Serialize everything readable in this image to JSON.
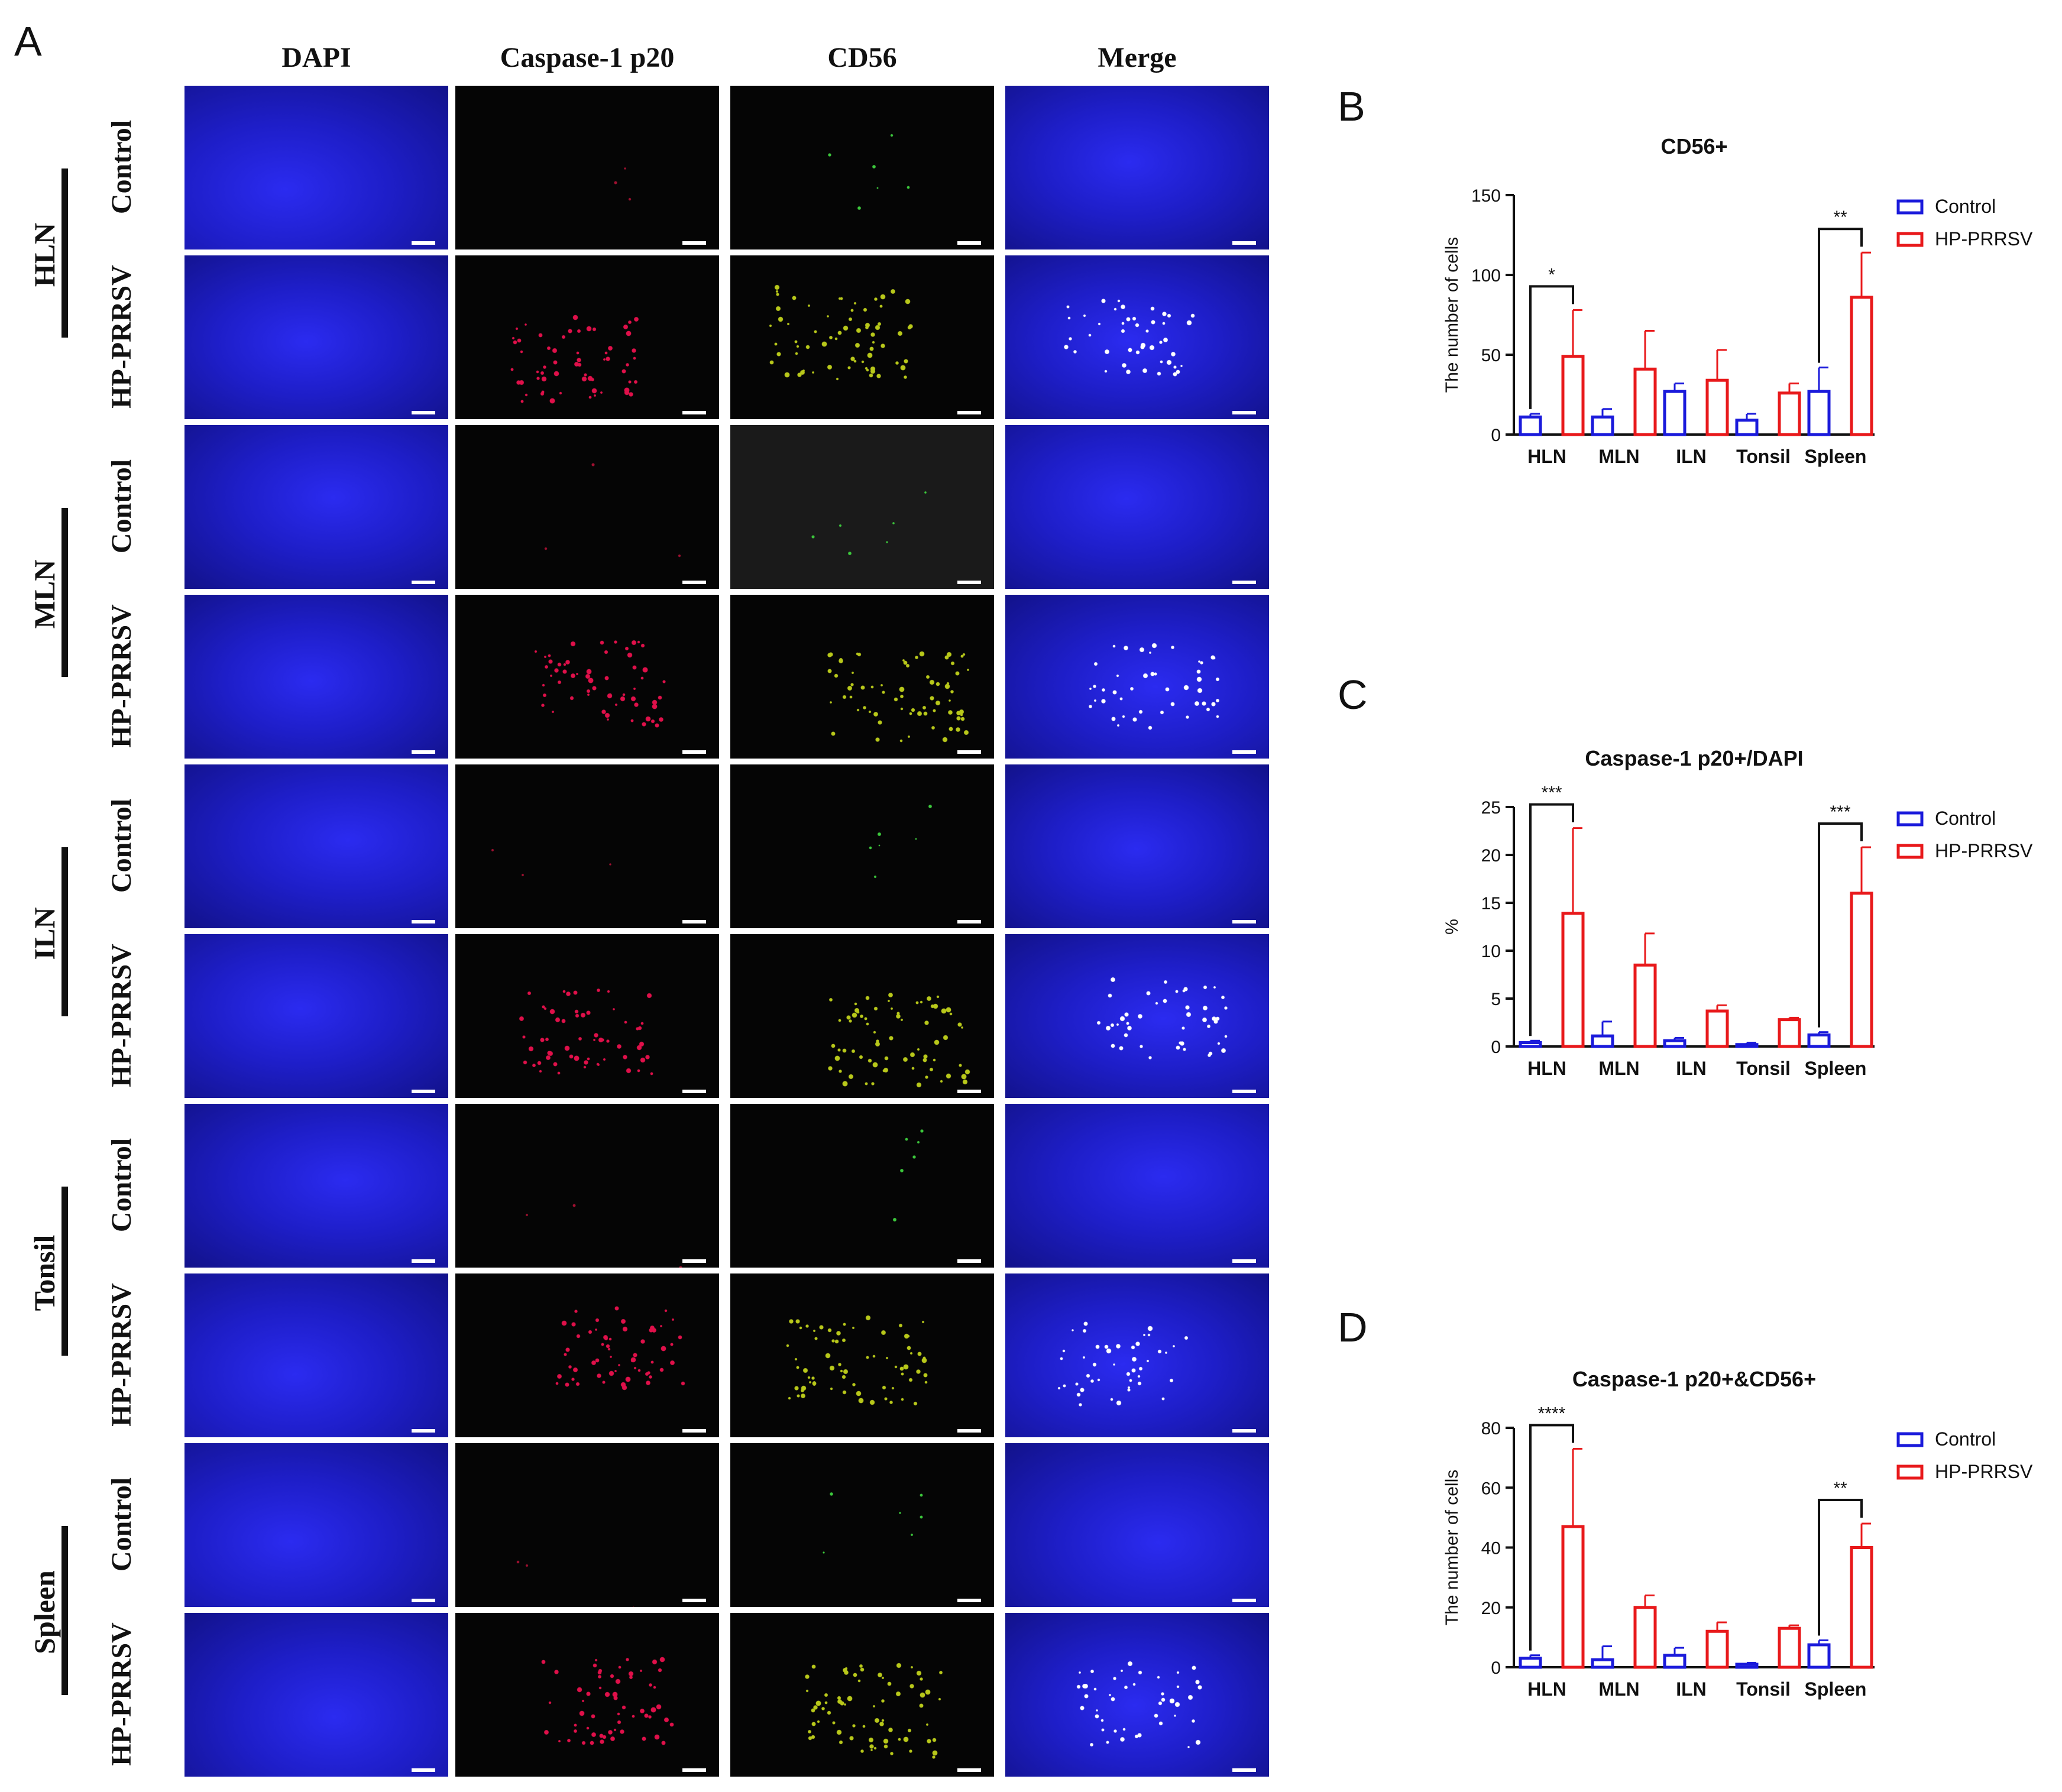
{
  "panel_letters": {
    "a": "A",
    "b": "B",
    "c": "C",
    "d": "D"
  },
  "grid": {
    "columns": [
      "DAPI",
      "Caspase-1 p20",
      "CD56",
      "Merge"
    ],
    "groups": [
      "Control",
      "HP-PRRSV"
    ],
    "tissues": [
      "HLN",
      "MLN",
      "ILN",
      "Tonsil",
      "Spleen"
    ]
  },
  "colors": {
    "control": "#1a1adb",
    "hp_prrsv": "#e8191b",
    "dapi": "#1e1ec8",
    "caspase": "#e0104a",
    "cd56": "#b8c81a"
  },
  "chart_data": [
    {
      "type": "bar",
      "title": "CD56+",
      "ylabel": "The number of cells",
      "xlabel": "",
      "categories": [
        "HLN",
        "MLN",
        "ILN",
        "Tonsil",
        "Spleen"
      ],
      "ylim": [
        0,
        150
      ],
      "yticks": [
        "0",
        "50",
        "100",
        "150"
      ],
      "series": [
        {
          "name": "Control",
          "values": [
            11,
            11,
            27,
            9,
            27
          ],
          "errors": [
            2,
            5,
            5,
            4,
            15
          ]
        },
        {
          "name": "HP-PRRSV",
          "values": [
            49,
            41,
            34,
            26,
            86
          ],
          "errors": [
            29,
            24,
            19,
            6,
            28
          ]
        }
      ],
      "significance": [
        {
          "category": "HLN",
          "label": "*"
        },
        {
          "category": "Spleen",
          "label": "**"
        }
      ],
      "legend": "right",
      "grid": false
    },
    {
      "type": "bar",
      "title": "Caspase-1 p20+/DAPI",
      "ylabel": "%",
      "xlabel": "",
      "categories": [
        "HLN",
        "MLN",
        "ILN",
        "Tonsil",
        "Spleen"
      ],
      "ylim": [
        0,
        25
      ],
      "yticks": [
        "0",
        "5",
        "10",
        "15",
        "20",
        "25"
      ],
      "series": [
        {
          "name": "Control",
          "values": [
            0.4,
            1.1,
            0.6,
            0.2,
            1.2
          ],
          "errors": [
            0.2,
            1.5,
            0.3,
            0.2,
            0.3
          ]
        },
        {
          "name": "HP-PRRSV",
          "values": [
            13.9,
            8.5,
            3.7,
            2.8,
            16.0
          ],
          "errors": [
            8.9,
            3.3,
            0.6,
            0.2,
            4.8
          ]
        }
      ],
      "significance": [
        {
          "category": "HLN",
          "label": "***"
        },
        {
          "category": "Spleen",
          "label": "***"
        }
      ],
      "legend": "right",
      "grid": false
    },
    {
      "type": "bar",
      "title": "Caspase-1 p20+&CD56+",
      "ylabel": "The number of cells",
      "xlabel": "",
      "categories": [
        "HLN",
        "MLN",
        "ILN",
        "Tonsil",
        "Spleen"
      ],
      "ylim": [
        0,
        80
      ],
      "yticks": [
        "0",
        "20",
        "40",
        "60",
        "80"
      ],
      "series": [
        {
          "name": "Control",
          "values": [
            3,
            2.5,
            4,
            1,
            7.5
          ],
          "errors": [
            1,
            4.5,
            2.5,
            0.5,
            1.5
          ]
        },
        {
          "name": "HP-PRRSV",
          "values": [
            47,
            20,
            12,
            13,
            40
          ],
          "errors": [
            26,
            4,
            3,
            1,
            8
          ]
        }
      ],
      "significance": [
        {
          "category": "HLN",
          "label": "****"
        },
        {
          "category": "Spleen",
          "label": "**"
        }
      ],
      "legend": "right",
      "grid": false
    }
  ]
}
